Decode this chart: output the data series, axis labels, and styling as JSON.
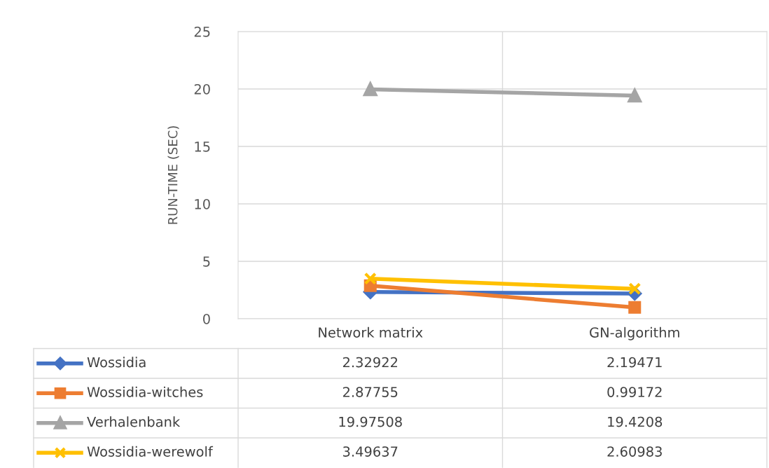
{
  "chart_data": {
    "type": "line",
    "ylabel": "RUN-TIME (SEC)",
    "categories": [
      "Network matrix",
      "GN-algorithm"
    ],
    "series": [
      {
        "name": "Wossidia",
        "color": "#4472c4",
        "marker": "diamond",
        "values": [
          2.32922,
          2.19471
        ]
      },
      {
        "name": "Wossidia-witches",
        "color": "#ed7d31",
        "marker": "square",
        "values": [
          2.87755,
          0.99172
        ]
      },
      {
        "name": "Verhalenbank",
        "color": "#a5a5a5",
        "marker": "triangle",
        "values": [
          19.97508,
          19.4208
        ]
      },
      {
        "name": "Wossidia-werewolf",
        "color": "#ffc000",
        "marker": "cross",
        "values": [
          3.49637,
          2.60983
        ]
      }
    ],
    "ylim": [
      0,
      25
    ],
    "yticks": [
      0,
      5,
      10,
      15,
      20,
      25
    ],
    "grid": true,
    "legend": "bottom",
    "data_labels": true,
    "line_style": "solid"
  }
}
